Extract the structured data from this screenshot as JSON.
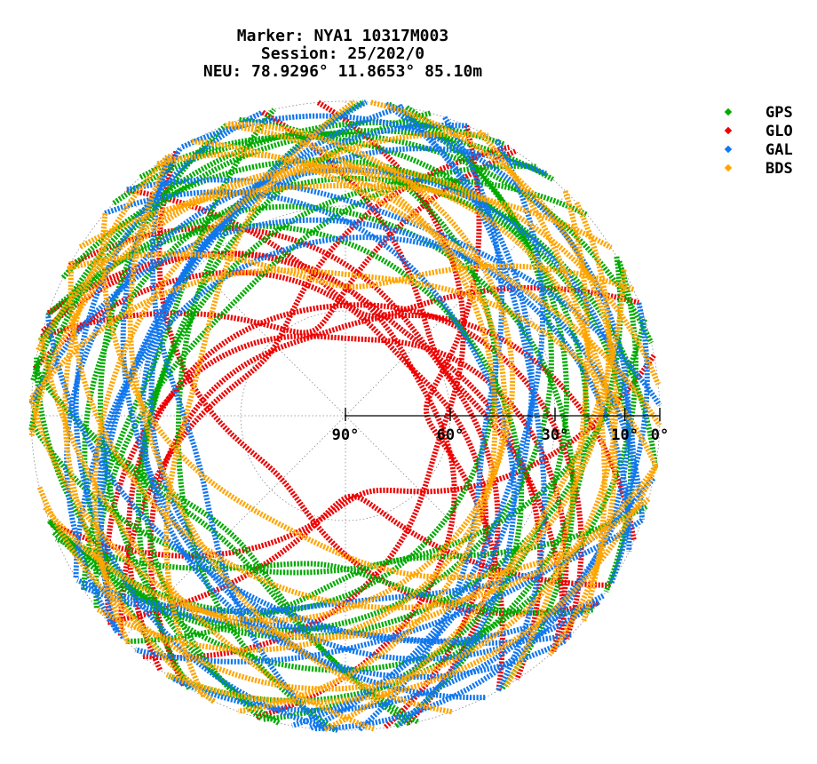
{
  "header": {
    "line1": "Marker: NYA1 10317M003",
    "line2": "Session: 25/202/0",
    "line3": "NEU: 78.9296° 11.8653° 85.10m"
  },
  "chart_data": {
    "type": "scatter",
    "projection": "polar skyplot (azimuth / elevation)",
    "radial_axis": "elevation, 90° at centre to 0° at rim",
    "elevation_ticks": [
      {
        "value": 90,
        "label": "90°"
      },
      {
        "value": 60,
        "label": "60°"
      },
      {
        "value": 30,
        "label": "30°"
      },
      {
        "value": 10,
        "label": "10°"
      },
      {
        "value": 0,
        "label": "0°"
      }
    ],
    "elevation_gridlines": [
      60,
      30,
      0
    ],
    "azimuth_gridlines_deg": [
      0,
      45,
      90,
      135,
      180,
      225,
      270,
      315
    ],
    "max_elevation_observed": {
      "GPS": 50,
      "GLO": 68,
      "GAL": 56,
      "BDS": 54
    },
    "legend_position": "top-right",
    "series": [
      {
        "name": "GPS",
        "color": "#00aa00"
      },
      {
        "name": "GLO",
        "color": "#ee0000"
      },
      {
        "name": "GAL",
        "color": "#1177ee"
      },
      {
        "name": "BDS",
        "color": "#ffa500"
      }
    ]
  }
}
